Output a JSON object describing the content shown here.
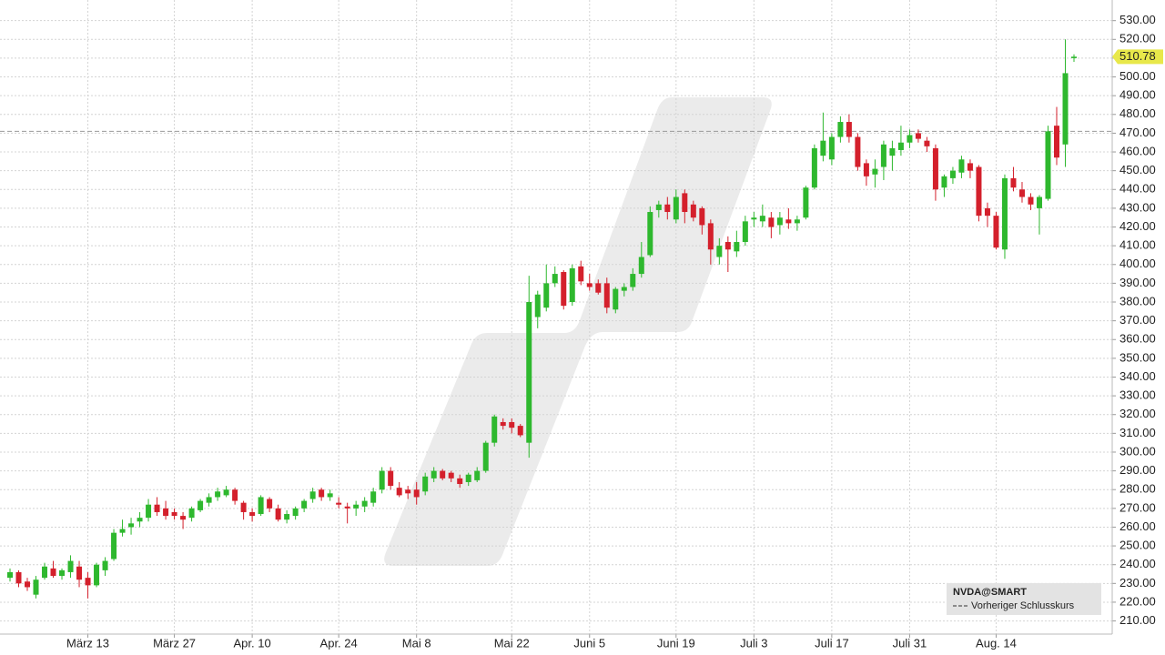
{
  "chart_data": {
    "type": "candlestick",
    "categories": [
      null,
      null,
      null,
      null,
      null,
      null,
      null,
      null,
      null,
      "März 13",
      null,
      null,
      null,
      null,
      null,
      null,
      null,
      null,
      null,
      "März 27",
      null,
      null,
      null,
      null,
      null,
      null,
      null,
      null,
      "Apr. 10",
      null,
      null,
      null,
      null,
      null,
      null,
      null,
      null,
      null,
      "Apr. 24",
      null,
      null,
      null,
      null,
      null,
      null,
      null,
      null,
      "Mai 8",
      null,
      null,
      null,
      null,
      null,
      null,
      null,
      null,
      null,
      null,
      "Mai 22",
      null,
      null,
      null,
      null,
      null,
      null,
      null,
      null,
      "Juni 5",
      null,
      null,
      null,
      null,
      null,
      null,
      null,
      null,
      null,
      "Juni 19",
      null,
      null,
      null,
      null,
      null,
      null,
      null,
      null,
      "Juli 3",
      null,
      null,
      null,
      null,
      null,
      null,
      null,
      null,
      "Juli 17",
      null,
      null,
      null,
      null,
      null,
      null,
      null,
      null,
      "Juli 31",
      null,
      null,
      null,
      null,
      null,
      null,
      null,
      null,
      null,
      "Aug. 14",
      null,
      null,
      null,
      null,
      null,
      null,
      null,
      null,
      null
    ],
    "series": [
      {
        "name": "NVDA@SMART",
        "up_color": "#2eb82e",
        "down_color": "#d4202c",
        "ohlc": [
          [
            233,
            238,
            231,
            236
          ],
          [
            236,
            237,
            228,
            230
          ],
          [
            231,
            233,
            226,
            228
          ],
          [
            224,
            234,
            222,
            232
          ],
          [
            233,
            241,
            232,
            239
          ],
          [
            238,
            242,
            233,
            234
          ],
          [
            234,
            238,
            232,
            237
          ],
          [
            236,
            245,
            233,
            242
          ],
          [
            239,
            242,
            228,
            232
          ],
          [
            233,
            236,
            222,
            229
          ],
          [
            229,
            241,
            228,
            240
          ],
          [
            237,
            244,
            234,
            242
          ],
          [
            243,
            259,
            242,
            257
          ],
          [
            257,
            264,
            255,
            259
          ],
          [
            260,
            265,
            256,
            262
          ],
          [
            263,
            268,
            260,
            265
          ],
          [
            265,
            275,
            263,
            272
          ],
          [
            272,
            276,
            266,
            268
          ],
          [
            270,
            274,
            264,
            266
          ],
          [
            268,
            270,
            264,
            266
          ],
          [
            266,
            268,
            259,
            264
          ],
          [
            265,
            271,
            263,
            270
          ],
          [
            269,
            275,
            268,
            274
          ],
          [
            273,
            278,
            271,
            276
          ],
          [
            276,
            281,
            274,
            279
          ],
          [
            277,
            282,
            276,
            280
          ],
          [
            280,
            281,
            272,
            274
          ],
          [
            273,
            274,
            264,
            268
          ],
          [
            268,
            270,
            263,
            266
          ],
          [
            267,
            277,
            266,
            276
          ],
          [
            275,
            276,
            268,
            270
          ],
          [
            270,
            272,
            263,
            264
          ],
          [
            264,
            269,
            262,
            267
          ],
          [
            266,
            271,
            264,
            270
          ],
          [
            270,
            275,
            268,
            274
          ],
          [
            275,
            281,
            273,
            279
          ],
          [
            280,
            281,
            274,
            276
          ],
          [
            276,
            280,
            274,
            278
          ],
          [
            273,
            276,
            270,
            272
          ],
          [
            271,
            273,
            262,
            270
          ],
          [
            270,
            274,
            266,
            272
          ],
          [
            271,
            276,
            268,
            274
          ],
          [
            273,
            281,
            271,
            279
          ],
          [
            280,
            292,
            278,
            290
          ],
          [
            290,
            292,
            280,
            282
          ],
          [
            281,
            284,
            276,
            277
          ],
          [
            280,
            282,
            275,
            278
          ],
          [
            280,
            284,
            272,
            276
          ],
          [
            279,
            289,
            277,
            287
          ],
          [
            286,
            292,
            284,
            290
          ],
          [
            290,
            291,
            285,
            286
          ],
          [
            289,
            290,
            284,
            286
          ],
          [
            286,
            288,
            281,
            283
          ],
          [
            284,
            289,
            282,
            288
          ],
          [
            285,
            292,
            284,
            290
          ],
          [
            290,
            306,
            289,
            305
          ],
          [
            305,
            320,
            303,
            319
          ],
          [
            316,
            318,
            312,
            314
          ],
          [
            316,
            318,
            310,
            313
          ],
          [
            314,
            315,
            308,
            309
          ],
          [
            305,
            394,
            297,
            380
          ],
          [
            372,
            386,
            366,
            384
          ],
          [
            377,
            400,
            375,
            390
          ],
          [
            390,
            399,
            388,
            395
          ],
          [
            396,
            397,
            376,
            378
          ],
          [
            380,
            400,
            378,
            398
          ],
          [
            399,
            402,
            389,
            391
          ],
          [
            390,
            395,
            386,
            388
          ],
          [
            390,
            392,
            384,
            385
          ],
          [
            390,
            393,
            374,
            377
          ],
          [
            376,
            388,
            374,
            387
          ],
          [
            386,
            390,
            383,
            388
          ],
          [
            388,
            398,
            386,
            395
          ],
          [
            395,
            412,
            393,
            404
          ],
          [
            405,
            431,
            404,
            428
          ],
          [
            429,
            434,
            425,
            432
          ],
          [
            432,
            436,
            424,
            428
          ],
          [
            424,
            440,
            422,
            436
          ],
          [
            438,
            440,
            422,
            428
          ],
          [
            432,
            434,
            423,
            425
          ],
          [
            430,
            431,
            416,
            421
          ],
          [
            422,
            424,
            400,
            408
          ],
          [
            404,
            414,
            400,
            410
          ],
          [
            412,
            415,
            396,
            408
          ],
          [
            407,
            418,
            404,
            412
          ],
          [
            412,
            426,
            410,
            423
          ],
          [
            424,
            428,
            420,
            425
          ],
          [
            423,
            432,
            420,
            426
          ],
          [
            425,
            428,
            414,
            420
          ],
          [
            421,
            428,
            416,
            425
          ],
          [
            424,
            430,
            419,
            422
          ],
          [
            422,
            426,
            418,
            424
          ],
          [
            425,
            442,
            424,
            441
          ],
          [
            441,
            464,
            440,
            462
          ],
          [
            458,
            481,
            455,
            466
          ],
          [
            456,
            470,
            453,
            468
          ],
          [
            468,
            479,
            465,
            476
          ],
          [
            476,
            480,
            465,
            468
          ],
          [
            468,
            470,
            450,
            452
          ],
          [
            454,
            456,
            442,
            447
          ],
          [
            448,
            456,
            441,
            451
          ],
          [
            452,
            466,
            445,
            464
          ],
          [
            458,
            466,
            450,
            462
          ],
          [
            461,
            474,
            458,
            465
          ],
          [
            465,
            472,
            462,
            469
          ],
          [
            470,
            472,
            465,
            467
          ],
          [
            466,
            468,
            460,
            463
          ],
          [
            462,
            464,
            434,
            440
          ],
          [
            441,
            448,
            436,
            447
          ],
          [
            446,
            452,
            443,
            450
          ],
          [
            449,
            458,
            446,
            456
          ],
          [
            454,
            456,
            446,
            450
          ],
          [
            452,
            453,
            423,
            426
          ],
          [
            430,
            433,
            420,
            426
          ],
          [
            426,
            428,
            408,
            409
          ],
          [
            408,
            448,
            403,
            446
          ],
          [
            446,
            452,
            439,
            441
          ],
          [
            440,
            444,
            433,
            436
          ],
          [
            436,
            438,
            429,
            432
          ],
          [
            430,
            437,
            416,
            436
          ],
          [
            435,
            474,
            434,
            471
          ],
          [
            474,
            484,
            453,
            457
          ],
          [
            464,
            520,
            452,
            502
          ],
          [
            510,
            512,
            508,
            510.78
          ]
        ]
      }
    ],
    "previous_close": {
      "name": "Vorheriger Schlusskurs",
      "value": 471,
      "color": "#999999"
    },
    "last_price_color": "#e8e84a",
    "ylim": [
      203,
      541
    ],
    "yticks": [
      {
        "value": 210,
        "label": "210.00"
      },
      {
        "value": 220,
        "label": "220.00"
      },
      {
        "value": 230,
        "label": "230.00"
      },
      {
        "value": 240,
        "label": "240.00"
      },
      {
        "value": 250,
        "label": "250.00"
      },
      {
        "value": 260,
        "label": "260.00"
      },
      {
        "value": 270,
        "label": "270.00"
      },
      {
        "value": 280,
        "label": "280.00"
      },
      {
        "value": 290,
        "label": "290.00"
      },
      {
        "value": 300,
        "label": "300.00"
      },
      {
        "value": 310,
        "label": "310.00"
      },
      {
        "value": 320,
        "label": "320.00"
      },
      {
        "value": 330,
        "label": "330.00"
      },
      {
        "value": 340,
        "label": "340.00"
      },
      {
        "value": 350,
        "label": "350.00"
      },
      {
        "value": 360,
        "label": "360.00"
      },
      {
        "value": 370,
        "label": "370.00"
      },
      {
        "value": 380,
        "label": "380.00"
      },
      {
        "value": 390,
        "label": "390.00"
      },
      {
        "value": 400,
        "label": "400.00"
      },
      {
        "value": 410,
        "label": "410.00"
      },
      {
        "value": 420,
        "label": "420.00"
      },
      {
        "value": 430,
        "label": "430.00"
      },
      {
        "value": 440,
        "label": "440.00"
      },
      {
        "value": 450,
        "label": "450.00"
      },
      {
        "value": 460,
        "label": "460.00"
      },
      {
        "value": 470,
        "label": "470.00"
      },
      {
        "value": 480,
        "label": "480.00"
      },
      {
        "value": 490,
        "label": "490.00"
      },
      {
        "value": 500,
        "label": "500.00"
      },
      {
        "value": 510,
        "label": "510.00"
      },
      {
        "value": 520,
        "label": "520.00"
      },
      {
        "value": 530,
        "label": "530.00"
      }
    ],
    "grid": true
  }
}
